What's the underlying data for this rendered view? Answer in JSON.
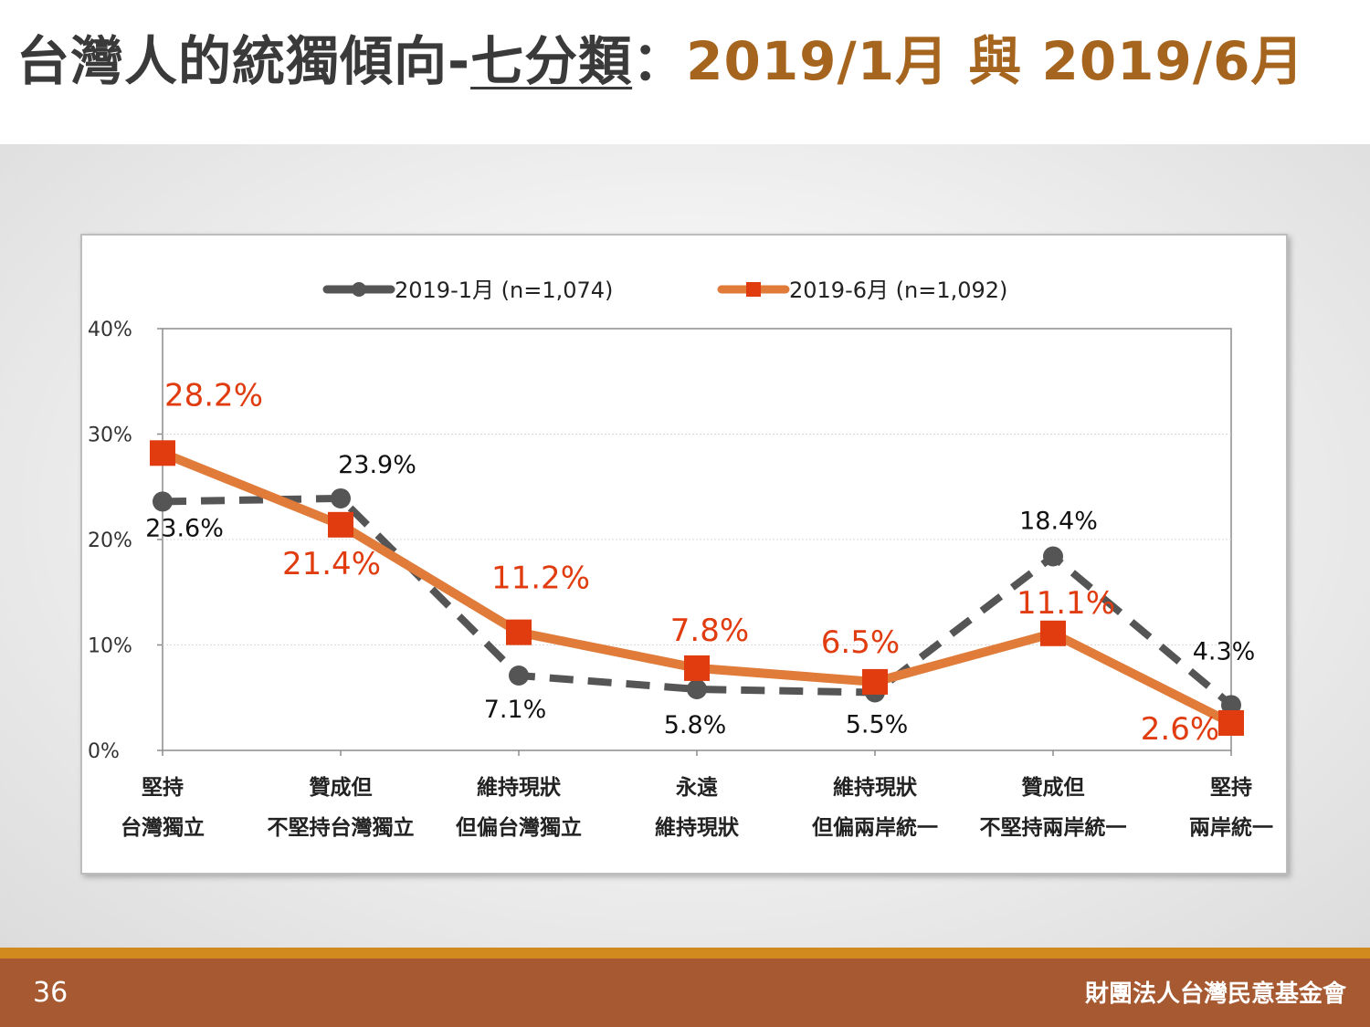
{
  "slide": {
    "title_main": "台灣人的統獨傾向-",
    "title_sub": "七分類",
    "title_sep": "：",
    "title_dates": "2019/1月 與 2019/6月",
    "page_number": "36",
    "organization": "財團法人台灣民意基金會",
    "colors": {
      "title_accent": "#a6651e",
      "footer": "#a75a32",
      "footer_stripe": "#d08a1e"
    }
  },
  "chart_data": {
    "type": "line",
    "title": "",
    "xlabel": "",
    "ylabel": "",
    "ylim": [
      0,
      40
    ],
    "y_ticks": [
      "0%",
      "10%",
      "20%",
      "30%",
      "40%"
    ],
    "grid": true,
    "legend_position": "top",
    "categories": [
      [
        "堅持",
        "台灣獨立"
      ],
      [
        "贊成但",
        "不堅持台灣獨立"
      ],
      [
        "維持現狀",
        "但偏台灣獨立"
      ],
      [
        "永遠",
        "維持現狀"
      ],
      [
        "維持現狀",
        "但偏兩岸統一"
      ],
      [
        "贊成但",
        "不堅持兩岸統一"
      ],
      [
        "堅持",
        "兩岸統一"
      ]
    ],
    "series": [
      {
        "name": "2019-1月 (n=1,074)",
        "color": "#555555",
        "style": "dashed",
        "marker": "circle",
        "values": [
          23.6,
          23.9,
          7.1,
          5.8,
          5.5,
          18.4,
          4.3
        ],
        "labels": [
          "23.6%",
          "23.9%",
          "7.1%",
          "5.8%",
          "5.5%",
          "18.4%",
          "4.3%"
        ]
      },
      {
        "name": "2019-6月 (n=1,092)",
        "color": "#e07b39",
        "marker_color": "#e03c10",
        "style": "solid",
        "marker": "square",
        "values": [
          28.2,
          21.4,
          11.2,
          7.8,
          6.5,
          11.1,
          2.6
        ],
        "labels": [
          "28.2%",
          "21.4%",
          "11.2%",
          "7.8%",
          "6.5%",
          "11.1%",
          "2.6%"
        ]
      }
    ]
  }
}
